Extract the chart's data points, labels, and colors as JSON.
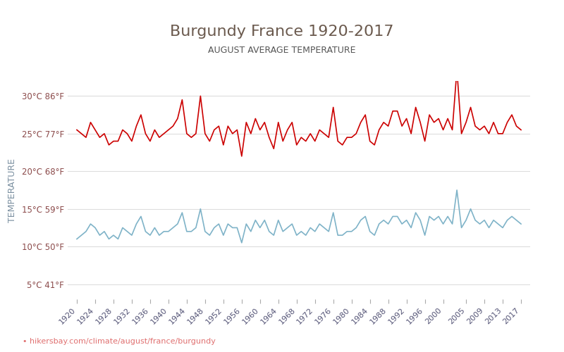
{
  "title": "Burgundy France 1920-2017",
  "subtitle": "AUGUST AVERAGE TEMPERATURE",
  "ylabel": "TEMPERATURE",
  "xlabel_url": "hikersbay.com/climate/august/france/burgundy",
  "ylim": [
    3,
    32
  ],
  "yticks_c": [
    5,
    10,
    15,
    20,
    25,
    30
  ],
  "yticks_f": [
    41,
    50,
    59,
    68,
    77,
    86
  ],
  "years": [
    1920,
    1921,
    1922,
    1923,
    1924,
    1925,
    1926,
    1927,
    1928,
    1929,
    1930,
    1931,
    1932,
    1933,
    1934,
    1935,
    1936,
    1937,
    1938,
    1939,
    1940,
    1941,
    1942,
    1943,
    1944,
    1945,
    1946,
    1947,
    1948,
    1949,
    1950,
    1951,
    1952,
    1953,
    1954,
    1955,
    1956,
    1957,
    1958,
    1959,
    1960,
    1961,
    1962,
    1963,
    1964,
    1965,
    1966,
    1967,
    1968,
    1969,
    1970,
    1971,
    1972,
    1973,
    1974,
    1975,
    1976,
    1977,
    1978,
    1979,
    1980,
    1981,
    1982,
    1983,
    1984,
    1985,
    1986,
    1987,
    1988,
    1989,
    1990,
    1991,
    1992,
    1993,
    1994,
    1995,
    1996,
    1997,
    1998,
    1999,
    2000,
    2001,
    2002,
    2003,
    2004,
    2005,
    2006,
    2007,
    2008,
    2009,
    2010,
    2011,
    2012,
    2013,
    2014,
    2015,
    2016,
    2017
  ],
  "day_temps": [
    25.5,
    25.0,
    24.5,
    26.5,
    25.5,
    24.5,
    25.0,
    23.5,
    24.0,
    24.0,
    25.5,
    25.0,
    24.0,
    26.0,
    27.5,
    25.0,
    24.0,
    25.5,
    24.5,
    25.0,
    25.5,
    26.0,
    27.0,
    29.5,
    25.0,
    24.5,
    25.0,
    30.0,
    25.0,
    24.0,
    25.5,
    26.0,
    23.5,
    26.0,
    25.0,
    25.5,
    22.0,
    26.5,
    25.0,
    27.0,
    25.5,
    26.5,
    24.5,
    23.0,
    26.5,
    24.0,
    25.5,
    26.5,
    23.5,
    24.5,
    24.0,
    25.0,
    24.0,
    25.5,
    25.0,
    24.5,
    28.5,
    24.0,
    23.5,
    24.5,
    24.5,
    25.0,
    26.5,
    27.5,
    24.0,
    23.5,
    25.5,
    26.5,
    26.0,
    28.0,
    28.0,
    26.0,
    27.0,
    25.0,
    28.5,
    26.5,
    24.0,
    27.5,
    26.5,
    27.0,
    25.5,
    27.0,
    25.5,
    33.5,
    25.0,
    26.5,
    28.5,
    26.0,
    25.5,
    26.0,
    25.0,
    26.5,
    25.0,
    25.0,
    26.5,
    27.5,
    26.0,
    25.5
  ],
  "night_temps": [
    11.0,
    11.5,
    12.0,
    13.0,
    12.5,
    11.5,
    12.0,
    11.0,
    11.5,
    11.0,
    12.5,
    12.0,
    11.5,
    13.0,
    14.0,
    12.0,
    11.5,
    12.5,
    11.5,
    12.0,
    12.0,
    12.5,
    13.0,
    14.5,
    12.0,
    12.0,
    12.5,
    15.0,
    12.0,
    11.5,
    12.5,
    13.0,
    11.5,
    13.0,
    12.5,
    12.5,
    10.5,
    13.0,
    12.0,
    13.5,
    12.5,
    13.5,
    12.0,
    11.5,
    13.5,
    12.0,
    12.5,
    13.0,
    11.5,
    12.0,
    11.5,
    12.5,
    12.0,
    13.0,
    12.5,
    12.0,
    14.5,
    11.5,
    11.5,
    12.0,
    12.0,
    12.5,
    13.5,
    14.0,
    12.0,
    11.5,
    13.0,
    13.5,
    13.0,
    14.0,
    14.0,
    13.0,
    13.5,
    12.5,
    14.5,
    13.5,
    11.5,
    14.0,
    13.5,
    14.0,
    13.0,
    14.0,
    13.0,
    17.5,
    12.5,
    13.5,
    15.0,
    13.5,
    13.0,
    13.5,
    12.5,
    13.5,
    13.0,
    12.5,
    13.5,
    14.0,
    13.5,
    13.0
  ],
  "day_color": "#cc0000",
  "night_color": "#7fb3c8",
  "title_color": "#6b5a4e",
  "subtitle_color": "#555555",
  "ylabel_color": "#7a8fa0",
  "tick_label_color": "#8b4a4a",
  "grid_color": "#dddddd",
  "bg_color": "#ffffff",
  "url_color": "#e07070",
  "url_text": "hikersbay.com/climate/august/france/burgundy",
  "xtick_years": [
    1920,
    1924,
    1928,
    1932,
    1936,
    1940,
    1944,
    1948,
    1952,
    1956,
    1960,
    1964,
    1968,
    1972,
    1976,
    1980,
    1984,
    1988,
    1992,
    1996,
    2000,
    2005,
    2009,
    2013,
    2017
  ]
}
